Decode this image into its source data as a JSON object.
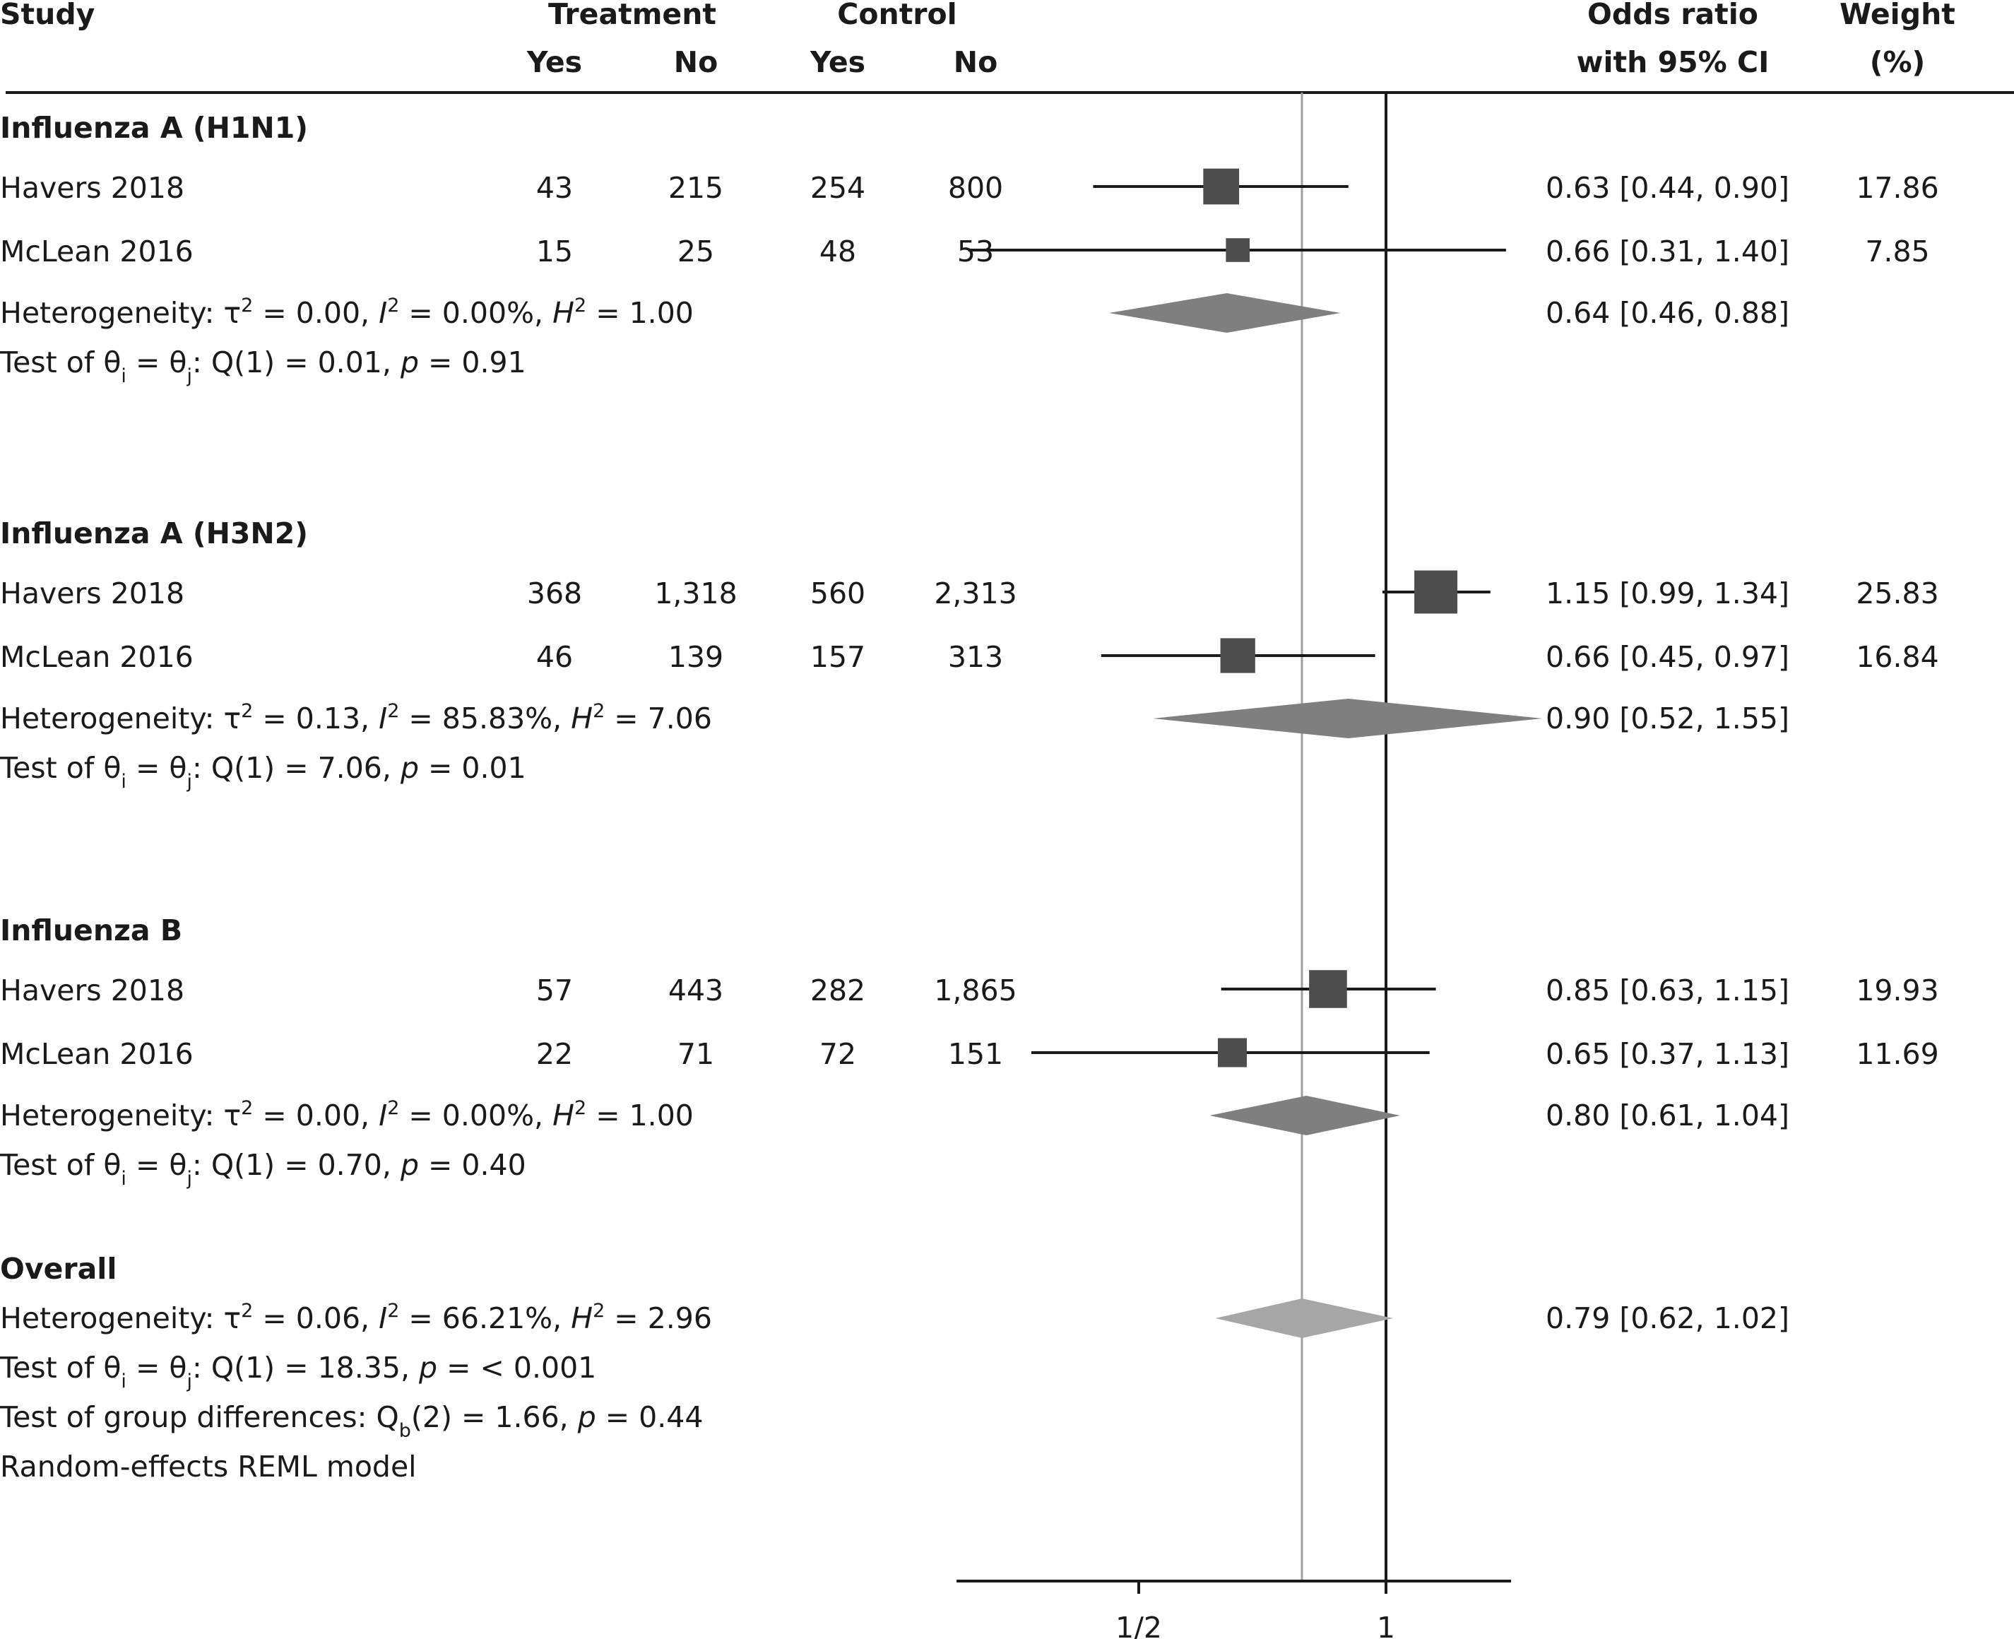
{
  "chart_data": {
    "type": "forest",
    "scale": "log",
    "headers": {
      "study": "Study",
      "treatment": "Treatment",
      "control": "Control",
      "yes": "Yes",
      "no": "No",
      "or_line1": "Odds ratio",
      "or_line2": "with 95% CI",
      "weight_line1": "Weight",
      "weight_line2": "(%)"
    },
    "groups": [
      {
        "name": "Influenza A (H1N1)",
        "studies": [
          {
            "label": "Havers 2018",
            "t_yes": "43",
            "t_no": "215",
            "c_yes": "254",
            "c_no": "800",
            "or": 0.63,
            "lo": 0.44,
            "hi": 0.9,
            "ci_text": "0.63 [0.44, 0.90]",
            "weight": 17.86,
            "weight_text": "17.86"
          },
          {
            "label": "McLean 2016",
            "t_yes": "15",
            "t_no": "25",
            "c_yes": "48",
            "c_no": "53",
            "or": 0.66,
            "lo": 0.31,
            "hi": 1.4,
            "ci_text": "0.66 [0.31, 1.40]",
            "weight": 7.85,
            "weight_text": "7.85"
          }
        ],
        "summary": {
          "or": 0.64,
          "lo": 0.46,
          "hi": 0.88,
          "ci_text": "0.64 [0.46, 0.88]"
        },
        "het": {
          "tau": "0.00",
          "i2": "0.00%",
          "h2": "1.00"
        },
        "test": {
          "q": "Q(1) = 0.01,",
          "p": "0.91"
        }
      },
      {
        "name": "Influenza A (H3N2)",
        "studies": [
          {
            "label": "Havers 2018",
            "t_yes": "368",
            "t_no": "1,318",
            "c_yes": "560",
            "c_no": "2,313",
            "or": 1.15,
            "lo": 0.99,
            "hi": 1.34,
            "ci_text": "1.15 [0.99, 1.34]",
            "weight": 25.83,
            "weight_text": "25.83"
          },
          {
            "label": "McLean 2016",
            "t_yes": "46",
            "t_no": "139",
            "c_yes": "157",
            "c_no": "313",
            "or": 0.66,
            "lo": 0.45,
            "hi": 0.97,
            "ci_text": "0.66 [0.45, 0.97]",
            "weight": 16.84,
            "weight_text": "16.84"
          }
        ],
        "summary": {
          "or": 0.9,
          "lo": 0.52,
          "hi": 1.55,
          "ci_text": "0.90 [0.52, 1.55]"
        },
        "het": {
          "tau": "0.13",
          "i2": "85.83%",
          "h2": "7.06"
        },
        "test": {
          "q": "Q(1) = 7.06,",
          "p": "0.01"
        }
      },
      {
        "name": "Influenza B",
        "studies": [
          {
            "label": "Havers 2018",
            "t_yes": "57",
            "t_no": "443",
            "c_yes": "282",
            "c_no": "1,865",
            "or": 0.85,
            "lo": 0.63,
            "hi": 1.15,
            "ci_text": "0.85 [0.63, 1.15]",
            "weight": 19.93,
            "weight_text": "19.93"
          },
          {
            "label": "McLean 2016",
            "t_yes": "22",
            "t_no": "71",
            "c_yes": "72",
            "c_no": "151",
            "or": 0.65,
            "lo": 0.37,
            "hi": 1.13,
            "ci_text": "0.65 [0.37, 1.13]",
            "weight": 11.69,
            "weight_text": "11.69"
          }
        ],
        "summary": {
          "or": 0.8,
          "lo": 0.61,
          "hi": 1.04,
          "ci_text": "0.80 [0.61, 1.04]"
        },
        "het": {
          "tau": "0.00",
          "i2": "0.00%",
          "h2": "1.00"
        },
        "test": {
          "q": "Q(1) = 0.70,",
          "p": "0.40"
        }
      }
    ],
    "overall": {
      "name": "Overall",
      "or": 0.79,
      "lo": 0.62,
      "hi": 1.02,
      "ci_text": "0.79 [0.62, 1.02]",
      "het": {
        "tau": "0.06",
        "i2": "66.21%",
        "h2": "2.96"
      },
      "test": {
        "q": "Q(1) = 18.35,",
        "p": "< 0.001"
      },
      "group_diff": {
        "prefix": "Test of group differences: Q",
        "sub": "b",
        "q": "(2) = 1.66,",
        "p": "0.44"
      },
      "model": "Random-effects REML model"
    },
    "labels": {
      "het_prefix": "Heterogeneity: τ",
      "test_prefix": "Test of θ",
      "theta_i": "i",
      "theta_j": "j"
    },
    "x_axis": {
      "ticks": [
        {
          "value": 0.5,
          "label": "1/2"
        },
        {
          "value": 1,
          "label": "1"
        }
      ],
      "range": [
        0.3,
        1.42
      ],
      "null_value": 1,
      "reference_line": 0.79
    },
    "colors": {
      "text": "#1a1a1a",
      "study_marker": "#4d4d4d",
      "subgroup_diamond": "#7f7f7f",
      "overall_diamond": "#a6a6a6",
      "reference_line": "#a0a0a0"
    }
  }
}
